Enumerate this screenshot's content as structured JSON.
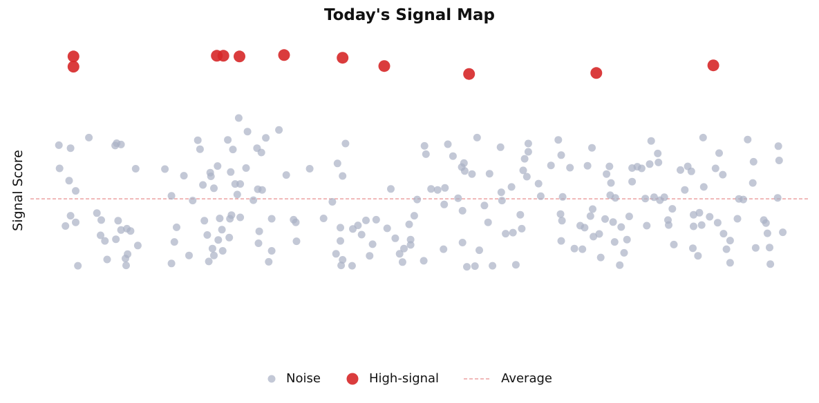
{
  "chart_data": {
    "type": "scatter",
    "title": "Today's Signal Map",
    "xlabel": "",
    "ylabel": "Signal Score",
    "xlim": [
      0,
      100
    ],
    "ylim": [
      0,
      100
    ],
    "grid": false,
    "legend_position": "bottom-center",
    "average": 48.3,
    "colors": {
      "noise": "#a9b1c4",
      "high": "#d62728",
      "average": "#e88e8e"
    },
    "series": [
      {
        "name": "Noise",
        "points": [
          [
            0.3,
            64.5
          ],
          [
            0.4,
            57.5
          ],
          [
            1.7,
            53.8
          ],
          [
            1.9,
            63.6
          ],
          [
            1.2,
            40.1
          ],
          [
            2.6,
            41.2
          ],
          [
            2.6,
            50.7
          ],
          [
            2.9,
            28.1
          ],
          [
            4.4,
            66.8
          ],
          [
            1.9,
            43.2
          ],
          [
            5.5,
            44.0
          ],
          [
            6.1,
            41.9
          ],
          [
            6.0,
            37.3
          ],
          [
            6.6,
            35.6
          ],
          [
            6.9,
            30.0
          ],
          [
            8.2,
            65.1
          ],
          [
            8.8,
            64.7
          ],
          [
            8.0,
            64.4
          ],
          [
            8.4,
            41.7
          ],
          [
            8.1,
            36.1
          ],
          [
            8.8,
            38.9
          ],
          [
            9.6,
            39.3
          ],
          [
            9.7,
            31.6
          ],
          [
            10.1,
            38.6
          ],
          [
            10.8,
            57.4
          ],
          [
            11.1,
            34.2
          ],
          [
            9.5,
            28.2
          ],
          [
            9.4,
            30.3
          ],
          [
            14.8,
            57.3
          ],
          [
            15.7,
            49.2
          ],
          [
            15.7,
            28.8
          ],
          [
            16.4,
            39.7
          ],
          [
            16.1,
            35.3
          ],
          [
            17.4,
            55.3
          ],
          [
            18.6,
            47.8
          ],
          [
            18.1,
            31.2
          ],
          [
            19.3,
            66.0
          ],
          [
            19.6,
            63.3
          ],
          [
            20.0,
            52.5
          ],
          [
            20.2,
            41.7
          ],
          [
            20.6,
            37.4
          ],
          [
            21.0,
            56.2
          ],
          [
            21.1,
            55.1
          ],
          [
            21.5,
            51.5
          ],
          [
            21.3,
            33.3
          ],
          [
            22.1,
            35.9
          ],
          [
            21.5,
            31.2
          ],
          [
            20.8,
            29.4
          ],
          [
            22.0,
            58.2
          ],
          [
            22.3,
            42.4
          ],
          [
            22.6,
            39.0
          ],
          [
            22.7,
            32.6
          ],
          [
            23.4,
            66.1
          ],
          [
            23.8,
            56.4
          ],
          [
            23.7,
            42.3
          ],
          [
            23.6,
            36.6
          ],
          [
            24.1,
            63.2
          ],
          [
            24.9,
            72.7
          ],
          [
            23.9,
            43.4
          ],
          [
            24.4,
            52.8
          ],
          [
            25.1,
            52.8
          ],
          [
            24.7,
            49.6
          ],
          [
            25.1,
            42.7
          ],
          [
            25.9,
            57.6
          ],
          [
            26.1,
            68.6
          ],
          [
            27.4,
            63.6
          ],
          [
            26.9,
            47.9
          ],
          [
            27.5,
            51.2
          ],
          [
            27.6,
            34.9
          ],
          [
            28.0,
            62.3
          ],
          [
            28.6,
            66.7
          ],
          [
            28.1,
            51.0
          ],
          [
            29.4,
            42.3
          ],
          [
            29.0,
            29.3
          ],
          [
            29.4,
            32.6
          ],
          [
            27.7,
            38.5
          ],
          [
            30.4,
            69.1
          ],
          [
            31.4,
            55.5
          ],
          [
            32.4,
            42.0
          ],
          [
            32.8,
            35.5
          ],
          [
            32.7,
            41.2
          ],
          [
            34.6,
            57.4
          ],
          [
            36.5,
            42.4
          ],
          [
            37.7,
            47.4
          ],
          [
            38.2,
            31.7
          ],
          [
            39.1,
            29.9
          ],
          [
            38.9,
            28.2
          ],
          [
            38.8,
            35.6
          ],
          [
            38.8,
            39.6
          ],
          [
            38.4,
            59.0
          ],
          [
            39.1,
            55.2
          ],
          [
            39.5,
            65.0
          ],
          [
            40.4,
            28.1
          ],
          [
            40.5,
            39.2
          ],
          [
            41.2,
            40.3
          ],
          [
            42.8,
            31.1
          ],
          [
            41.7,
            37.5
          ],
          [
            42.3,
            41.8
          ],
          [
            43.2,
            34.6
          ],
          [
            43.7,
            42.0
          ],
          [
            45.2,
            39.4
          ],
          [
            45.7,
            51.3
          ],
          [
            46.3,
            36.4
          ],
          [
            46.9,
            31.7
          ],
          [
            47.5,
            33.3
          ],
          [
            47.3,
            29.2
          ],
          [
            48.2,
            40.6
          ],
          [
            48.4,
            36.0
          ],
          [
            48.4,
            34.4
          ],
          [
            48.9,
            43.2
          ],
          [
            49.3,
            48.1
          ],
          [
            50.2,
            29.6
          ],
          [
            50.3,
            64.3
          ],
          [
            50.5,
            61.8
          ],
          [
            51.2,
            51.3
          ],
          [
            52.1,
            51.0
          ],
          [
            52.9,
            33.1
          ],
          [
            53.0,
            46.6
          ],
          [
            53.1,
            51.6
          ],
          [
            53.5,
            64.8
          ],
          [
            54.2,
            61.2
          ],
          [
            54.9,
            48.5
          ],
          [
            55.5,
            44.7
          ],
          [
            55.4,
            57.9
          ],
          [
            55.7,
            59.1
          ],
          [
            55.8,
            56.7
          ],
          [
            55.5,
            35.1
          ],
          [
            56.1,
            27.8
          ],
          [
            56.8,
            55.8
          ],
          [
            57.2,
            28.0
          ],
          [
            57.5,
            66.8
          ],
          [
            57.8,
            32.8
          ],
          [
            58.5,
            46.3
          ],
          [
            59.0,
            41.2
          ],
          [
            59.6,
            28.1
          ],
          [
            59.2,
            55.9
          ],
          [
            60.7,
            63.9
          ],
          [
            60.8,
            50.3
          ],
          [
            60.9,
            47.8
          ],
          [
            61.4,
            37.8
          ],
          [
            62.2,
            51.9
          ],
          [
            62.4,
            38.1
          ],
          [
            62.8,
            28.4
          ],
          [
            63.4,
            43.5
          ],
          [
            63.6,
            39.3
          ],
          [
            63.8,
            56.9
          ],
          [
            64.3,
            55.0
          ],
          [
            64.0,
            60.4
          ],
          [
            64.5,
            65.0
          ],
          [
            64.5,
            62.5
          ],
          [
            65.9,
            52.9
          ],
          [
            66.2,
            49.1
          ],
          [
            67.6,
            58.4
          ],
          [
            68.6,
            66.1
          ],
          [
            69.0,
            61.5
          ],
          [
            69.1,
            41.7
          ],
          [
            69.0,
            35.6
          ],
          [
            69.2,
            48.9
          ],
          [
            68.9,
            43.7
          ],
          [
            70.2,
            57.7
          ],
          [
            70.8,
            33.3
          ],
          [
            71.9,
            33.1
          ],
          [
            71.6,
            40.2
          ],
          [
            72.2,
            39.6
          ],
          [
            72.6,
            58.3
          ],
          [
            73.2,
            63.7
          ],
          [
            73.3,
            45.2
          ],
          [
            73.0,
            43.1
          ],
          [
            73.4,
            36.9
          ],
          [
            74.2,
            37.7
          ],
          [
            74.4,
            30.6
          ],
          [
            75.0,
            42.2
          ],
          [
            75.2,
            55.8
          ],
          [
            75.6,
            58.1
          ],
          [
            75.8,
            53.1
          ],
          [
            75.7,
            49.4
          ],
          [
            76.4,
            48.6
          ],
          [
            76.1,
            41.3
          ],
          [
            76.3,
            35.3
          ],
          [
            77.0,
            28.3
          ],
          [
            77.6,
            32.0
          ],
          [
            77.2,
            39.8
          ],
          [
            78.0,
            36.0
          ],
          [
            78.3,
            43.0
          ],
          [
            78.7,
            57.6
          ],
          [
            78.7,
            53.5
          ],
          [
            79.4,
            58.0
          ],
          [
            80.0,
            57.5
          ],
          [
            80.5,
            48.4
          ],
          [
            80.7,
            40.2
          ],
          [
            81.3,
            65.8
          ],
          [
            81.1,
            58.8
          ],
          [
            81.7,
            48.8
          ],
          [
            82.3,
            59.3
          ],
          [
            82.5,
            47.9
          ],
          [
            82.2,
            62.0
          ],
          [
            83.1,
            48.8
          ],
          [
            83.6,
            41.9
          ],
          [
            83.7,
            40.4
          ],
          [
            84.2,
            45.3
          ],
          [
            84.4,
            34.5
          ],
          [
            85.3,
            57.0
          ],
          [
            85.9,
            51.0
          ],
          [
            86.3,
            58.1
          ],
          [
            86.8,
            56.6
          ],
          [
            87.1,
            43.5
          ],
          [
            87.1,
            40.0
          ],
          [
            87.0,
            33.4
          ],
          [
            87.9,
            44.1
          ],
          [
            87.7,
            31.1
          ],
          [
            88.4,
            66.8
          ],
          [
            88.5,
            51.9
          ],
          [
            88.2,
            40.4
          ],
          [
            89.3,
            42.9
          ],
          [
            90.4,
            41.1
          ],
          [
            90.1,
            57.5
          ],
          [
            90.6,
            62.1
          ],
          [
            91.1,
            55.6
          ],
          [
            91.2,
            37.8
          ],
          [
            91.6,
            33.1
          ],
          [
            92.1,
            29.0
          ],
          [
            92.1,
            35.7
          ],
          [
            93.3,
            48.3
          ],
          [
            93.1,
            42.3
          ],
          [
            93.9,
            48.1
          ],
          [
            95.2,
            53.1
          ],
          [
            95.3,
            59.5
          ],
          [
            95.6,
            33.5
          ],
          [
            94.5,
            66.2
          ],
          [
            96.7,
            41.9
          ],
          [
            97.0,
            41.0
          ],
          [
            97.2,
            37.9
          ],
          [
            97.6,
            28.6
          ],
          [
            98.7,
            64.2
          ],
          [
            98.6,
            48.6
          ],
          [
            98.8,
            59.9
          ],
          [
            99.3,
            38.2
          ],
          [
            97.5,
            33.6
          ]
        ]
      },
      {
        "name": "High-signal",
        "points": [
          [
            2.3,
            91.3
          ],
          [
            2.3,
            88.2
          ],
          [
            21.9,
            91.5
          ],
          [
            22.8,
            91.5
          ],
          [
            25.0,
            91.3
          ],
          [
            31.1,
            91.7
          ],
          [
            39.1,
            90.9
          ],
          [
            44.8,
            88.4
          ],
          [
            56.4,
            86.0
          ],
          [
            73.8,
            86.3
          ],
          [
            89.8,
            88.6
          ]
        ]
      }
    ]
  },
  "legend": {
    "items": [
      {
        "key": "noise",
        "label": "Noise"
      },
      {
        "key": "high",
        "label": "High-signal"
      },
      {
        "key": "average",
        "label": "Average"
      }
    ]
  }
}
